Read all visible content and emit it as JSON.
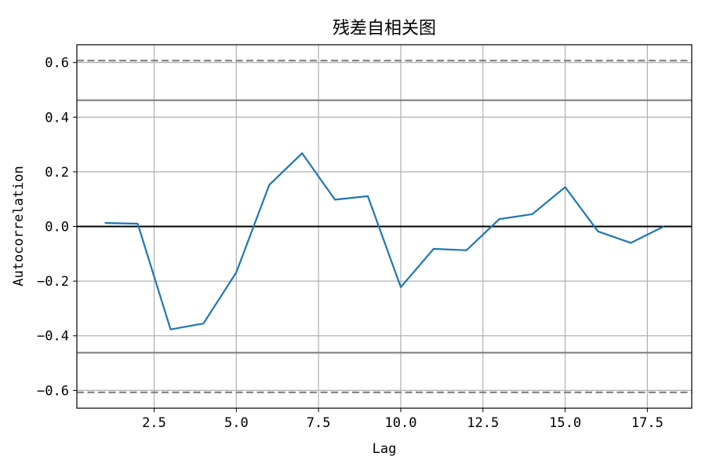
{
  "chart_data": {
    "type": "line",
    "title": "残差自相关图",
    "xlabel": "Lag",
    "ylabel": "Autocorrelation",
    "xlim": [
      0.15,
      18.85
    ],
    "ylim": [
      -0.665,
      0.665
    ],
    "grid": true,
    "x_ticks": [
      2.5,
      5.0,
      7.5,
      10.0,
      12.5,
      15.0,
      17.5
    ],
    "x_tick_labels": [
      "2.5",
      "5.0",
      "7.5",
      "10.0",
      "12.5",
      "15.0",
      "17.5"
    ],
    "y_ticks": [
      0.6,
      0.4,
      0.2,
      0.0,
      -0.2,
      -0.4,
      -0.6
    ],
    "y_tick_labels": [
      "0.6",
      "0.4",
      "0.2",
      "0.0",
      "−0.2",
      "−0.4",
      "−0.6"
    ],
    "series": [
      {
        "x": [
          1,
          2,
          3,
          4,
          5,
          6,
          7,
          8,
          9,
          10,
          11,
          12,
          13,
          14,
          15,
          16,
          17,
          18
        ],
        "values": [
          0.013,
          0.01,
          -0.377,
          -0.355,
          -0.168,
          0.152,
          0.268,
          0.098,
          0.111,
          -0.222,
          -0.082,
          -0.087,
          0.027,
          0.045,
          0.144,
          -0.018,
          -0.06,
          0.0
        ],
        "color": "#1f77b4"
      }
    ],
    "reference_lines": [
      {
        "y": 0.607,
        "style": "dashed",
        "color": "#808080"
      },
      {
        "y": 0.462,
        "style": "solid",
        "color": "#808080"
      },
      {
        "y": 0.0,
        "style": "solid",
        "color": "#000000"
      },
      {
        "y": -0.462,
        "style": "solid",
        "color": "#808080"
      },
      {
        "y": -0.607,
        "style": "dashed",
        "color": "#808080"
      }
    ]
  }
}
